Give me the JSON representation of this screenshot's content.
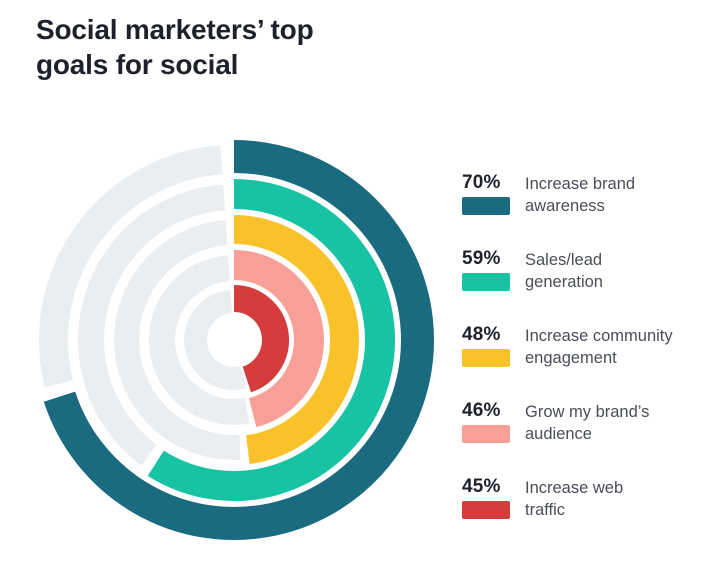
{
  "title": {
    "lines": [
      "Social marketers’ top",
      "goals for social"
    ]
  },
  "chart_data": {
    "type": "bar",
    "variant": "concentric-radial-rings",
    "title": "Social marketers’ top goals for social",
    "categories": [
      "Increase brand awareness",
      "Sales/lead generation",
      "Increase community engagement",
      "Grow my brand’s audience",
      "Increase web traffic"
    ],
    "values": [
      70,
      59,
      48,
      46,
      45
    ],
    "unit": "%",
    "value_range": [
      0,
      100
    ],
    "start_angle_deg": 0,
    "direction": "clockwise",
    "colors": [
      "#1a6a80",
      "#17c3a3",
      "#f9c22b",
      "#f89f97",
      "#d63c3c"
    ],
    "track_color": "#ebeef1",
    "hole_color": "#ffffff",
    "legend_position": "right"
  },
  "legend": {
    "items": [
      {
        "pct": "70%",
        "color": "#1a6a80",
        "lines": [
          "Increase brand",
          "awareness"
        ]
      },
      {
        "pct": "59%",
        "color": "#17c3a3",
        "lines": [
          "Sales/lead",
          "generation"
        ]
      },
      {
        "pct": "48%",
        "color": "#f9c22b",
        "lines": [
          "Increase community",
          "engagement"
        ]
      },
      {
        "pct": "46%",
        "color": "#f89f97",
        "lines": [
          "Grow my brand’s",
          "audience"
        ]
      },
      {
        "pct": "45%",
        "color": "#d63c3c",
        "lines": [
          "Increase web",
          "traffic"
        ]
      }
    ]
  }
}
